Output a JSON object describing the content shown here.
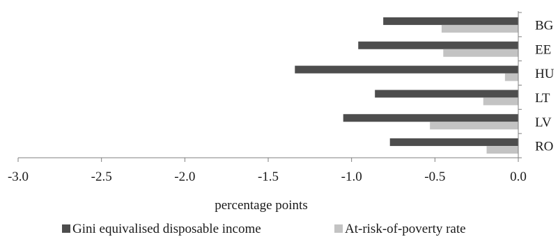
{
  "chart_data": {
    "type": "bar",
    "orientation": "horizontal",
    "categories": [
      "BG",
      "EE",
      "HU",
      "LT",
      "LV",
      "RO"
    ],
    "series": [
      {
        "name": "Gini equivalised disposable income",
        "color": "#4d4d4d",
        "values": [
          -0.81,
          -0.96,
          -1.34,
          -0.86,
          -1.05,
          -0.77
        ]
      },
      {
        "name": "At-risk-of-poverty rate",
        "color": "#c3c3c3",
        "values": [
          -0.46,
          -0.45,
          -0.08,
          -0.21,
          -0.53,
          -0.19
        ]
      }
    ],
    "xlabel": "percentage points",
    "ylabel": "",
    "xlim": [
      -3.0,
      0.0
    ],
    "xticks": [
      -3.0,
      -2.5,
      -2.0,
      -1.5,
      -1.0,
      -0.5,
      0.0
    ],
    "xtick_labels": [
      "-3.0",
      "-2.5",
      "-2.0",
      "-1.5",
      "-1.0",
      "-0.5",
      "0.0"
    ],
    "category_axis_position": "right",
    "grid": false,
    "legend_position": "bottom"
  }
}
